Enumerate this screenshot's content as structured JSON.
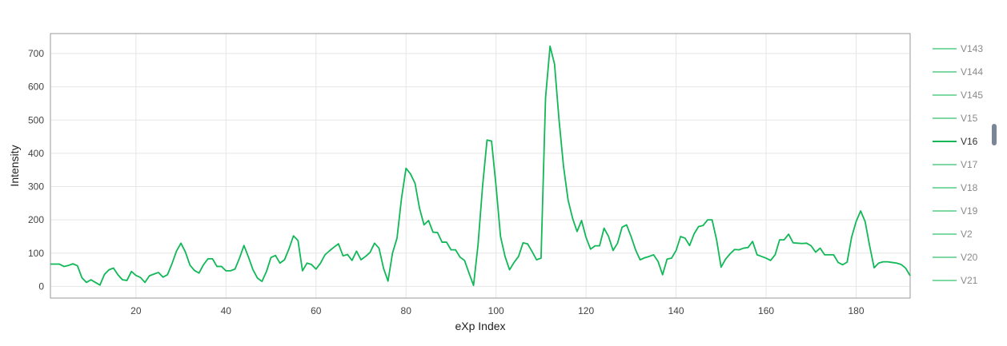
{
  "chart_data": {
    "type": "line",
    "title": "",
    "xlabel": "eXp Index",
    "ylabel": "Intensity",
    "xlim": [
      1,
      192
    ],
    "ylim": [
      -35,
      760
    ],
    "x_ticks": [
      20,
      40,
      60,
      80,
      100,
      120,
      140,
      160,
      180
    ],
    "y_ticks": [
      0,
      100,
      200,
      300,
      400,
      500,
      600,
      700
    ],
    "grid": true,
    "legend_position": "right",
    "active_color": "#11b857",
    "inactive_color": "#7fd9a4",
    "series": [
      {
        "name": "V16",
        "x": [
          1,
          2,
          3,
          4,
          5,
          6,
          7,
          8,
          9,
          10,
          11,
          12,
          13,
          14,
          15,
          16,
          17,
          18,
          19,
          20,
          21,
          22,
          23,
          24,
          25,
          26,
          27,
          28,
          29,
          30,
          31,
          32,
          33,
          34,
          35,
          36,
          37,
          38,
          39,
          40,
          41,
          42,
          43,
          44,
          45,
          46,
          47,
          48,
          49,
          50,
          51,
          52,
          53,
          54,
          55,
          56,
          57,
          58,
          59,
          60,
          61,
          62,
          63,
          64,
          65,
          66,
          67,
          68,
          69,
          70,
          71,
          72,
          73,
          74,
          75,
          76,
          77,
          78,
          79,
          80,
          81,
          82,
          83,
          84,
          85,
          86,
          87,
          88,
          89,
          90,
          91,
          92,
          93,
          94,
          95,
          96,
          97,
          98,
          99,
          100,
          101,
          102,
          103,
          104,
          105,
          106,
          107,
          108,
          109,
          110,
          111,
          112,
          113,
          114,
          115,
          116,
          117,
          118,
          119,
          120,
          121,
          122,
          123,
          124,
          125,
          126,
          127,
          128,
          129,
          130,
          131,
          132,
          133,
          134,
          135,
          136,
          137,
          138,
          139,
          140,
          141,
          142,
          143,
          144,
          145,
          146,
          147,
          148,
          149,
          150,
          151,
          152,
          153,
          154,
          155,
          156,
          157,
          158,
          159,
          160,
          161,
          162,
          163,
          164,
          165,
          166,
          167,
          168,
          169,
          170,
          171,
          172,
          173,
          174,
          175,
          176,
          177,
          178,
          179,
          180,
          181,
          182,
          183,
          184,
          185,
          186,
          187,
          188,
          189,
          190,
          191,
          192
        ],
        "y": [
          67,
          67,
          67,
          60,
          63,
          68,
          62,
          26,
          12,
          20,
          12,
          4,
          36,
          50,
          55,
          35,
          20,
          18,
          45,
          33,
          27,
          12,
          32,
          37,
          42,
          28,
          35,
          68,
          106,
          130,
          103,
          64,
          48,
          40,
          65,
          83,
          83,
          60,
          60,
          47,
          47,
          52,
          85,
          123,
          88,
          50,
          25,
          15,
          45,
          87,
          93,
          70,
          80,
          113,
          152,
          138,
          47,
          70,
          66,
          52,
          70,
          95,
          107,
          118,
          128,
          92,
          96,
          78,
          106,
          80,
          90,
          102,
          130,
          115,
          55,
          16,
          100,
          145,
          265,
          355,
          338,
          310,
          235,
          185,
          198,
          163,
          162,
          133,
          133,
          110,
          110,
          88,
          78,
          40,
          3,
          125,
          300,
          440,
          437,
          302,
          150,
          90,
          50,
          72,
          90,
          131,
          128,
          105,
          80,
          85,
          567,
          722,
          668,
          500,
          360,
          260,
          205,
          165,
          198,
          147,
          112,
          122,
          122,
          175,
          150,
          108,
          130,
          178,
          185,
          150,
          110,
          80,
          86,
          90,
          95,
          75,
          35,
          82,
          85,
          108,
          150,
          145,
          123,
          158,
          180,
          183,
          200,
          200,
          140,
          58,
          82,
          98,
          111,
          110,
          115,
          117,
          135,
          95,
          90,
          85,
          78,
          95,
          140,
          140,
          157,
          131,
          130,
          129,
          130,
          122,
          103,
          115,
          95,
          95,
          95,
          72,
          65,
          73,
          148,
          195,
          227,
          195,
          122,
          56,
          70,
          74,
          74,
          72,
          70,
          66,
          55,
          32
        ]
      }
    ],
    "legend": {
      "items": [
        "V143",
        "V144",
        "V145",
        "V15",
        "V16",
        "V17",
        "V18",
        "V19",
        "V2",
        "V20",
        "V21"
      ],
      "active": "V16"
    }
  }
}
